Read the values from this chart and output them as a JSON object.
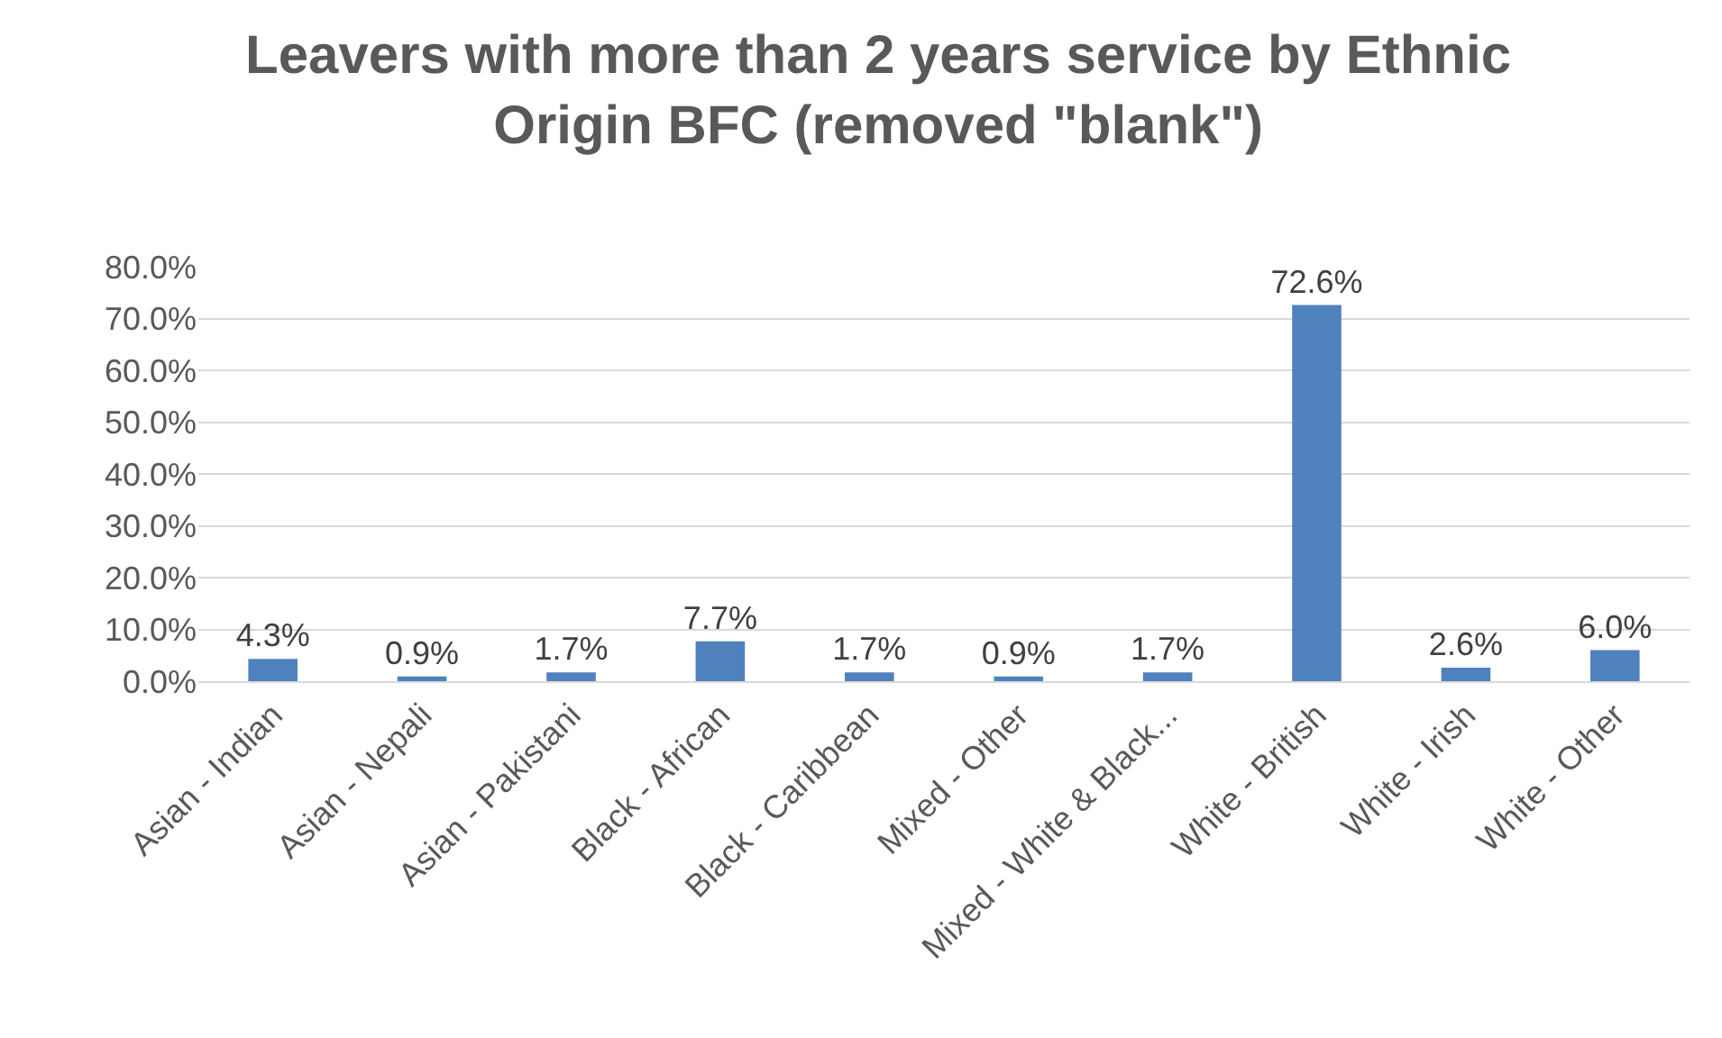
{
  "chart_data": {
    "type": "bar",
    "title": "Leavers with more than 2 years service by Ethnic Origin BFC (removed \"blank\")",
    "categories": [
      "Asian - Indian",
      "Asian - Nepali",
      "Asian - Pakistani",
      "Black - African",
      "Black - Caribbean",
      "Mixed - Other",
      "Mixed - White & Black...",
      "White - British",
      "White - Irish",
      "White - Other"
    ],
    "values": [
      4.3,
      0.9,
      1.7,
      7.7,
      1.7,
      0.9,
      1.7,
      72.6,
      2.6,
      6.0
    ],
    "value_labels": [
      "4.3%",
      "0.9%",
      "1.7%",
      "7.7%",
      "1.7%",
      "0.9%",
      "1.7%",
      "72.6%",
      "2.6%",
      "6.0%"
    ],
    "color": "#4f81bd",
    "ylim": [
      0,
      80
    ],
    "yticks": [
      {
        "value": 0,
        "label": "0.0%"
      },
      {
        "value": 10,
        "label": "10.0%"
      },
      {
        "value": 20,
        "label": "20.0%"
      },
      {
        "value": 30,
        "label": "30.0%"
      },
      {
        "value": 40,
        "label": "40.0%"
      },
      {
        "value": 50,
        "label": "50.0%"
      },
      {
        "value": 60,
        "label": "60.0%"
      },
      {
        "value": 70,
        "label": "70.0%"
      },
      {
        "value": 80,
        "label": "80.0%"
      }
    ],
    "grid": "y",
    "legend": false
  }
}
